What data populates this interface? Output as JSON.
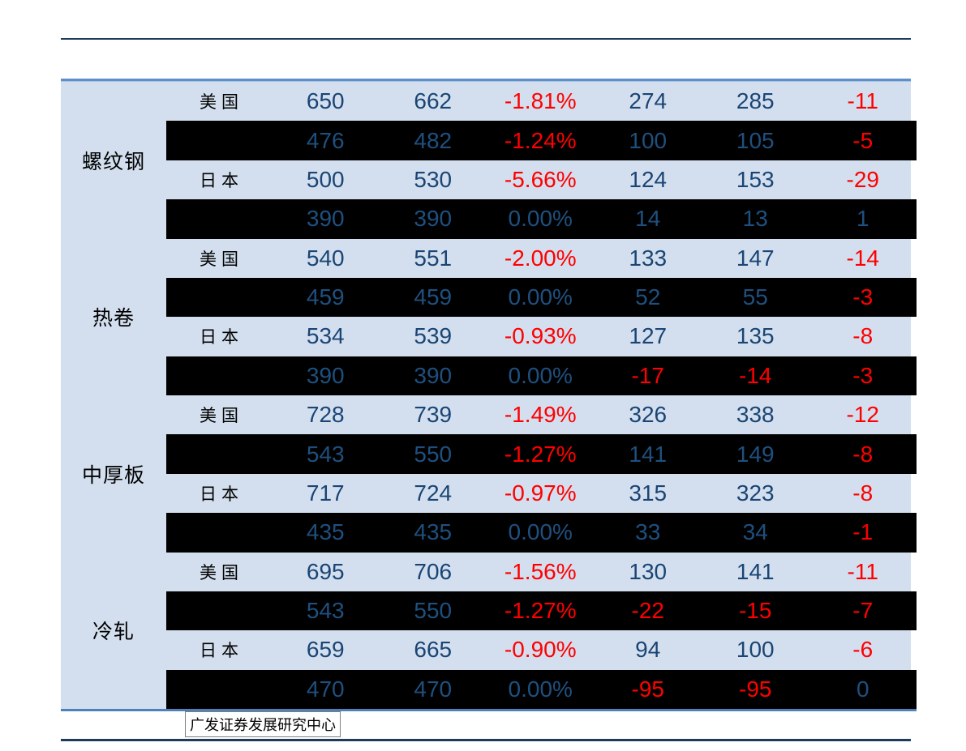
{
  "footer": {
    "credit": "广发证券发展研究中心"
  },
  "colors": {
    "accent_navy_rule": "#1e3a5f",
    "table_top_border": "#5e8fc9",
    "table_bottom_border": "#4d80bd",
    "row_light_bg": "#d3dfee",
    "row_dark_bg": "#000000",
    "number_blue": "#1a4574",
    "number_blue_on_dark": "#1e507f",
    "number_red": "#ff0000",
    "label_black": "#000000"
  },
  "table": {
    "groups": [
      {
        "label": "螺纹钢",
        "rows": [
          {
            "country": "美国",
            "shade": "light",
            "cells": [
              "650",
              "662",
              "-1.81%",
              "274",
              "285",
              "-11"
            ]
          },
          {
            "country": "",
            "shade": "dark",
            "cells": [
              "476",
              "482",
              "-1.24%",
              "100",
              "105",
              "-5"
            ]
          },
          {
            "country": "日本",
            "shade": "light",
            "cells": [
              "500",
              "530",
              "-5.66%",
              "124",
              "153",
              "-29"
            ]
          },
          {
            "country": "",
            "shade": "dark",
            "cells": [
              "390",
              "390",
              "0.00%",
              "14",
              "13",
              "1"
            ]
          }
        ]
      },
      {
        "label": "热卷",
        "rows": [
          {
            "country": "美国",
            "shade": "light",
            "cells": [
              "540",
              "551",
              "-2.00%",
              "133",
              "147",
              "-14"
            ]
          },
          {
            "country": "",
            "shade": "dark",
            "cells": [
              "459",
              "459",
              "0.00%",
              "52",
              "55",
              "-3"
            ]
          },
          {
            "country": "日本",
            "shade": "light",
            "cells": [
              "534",
              "539",
              "-0.93%",
              "127",
              "135",
              "-8"
            ]
          },
          {
            "country": "",
            "shade": "dark",
            "cells": [
              "390",
              "390",
              "0.00%",
              "-17",
              "-14",
              "-3"
            ]
          }
        ]
      },
      {
        "label": "中厚板",
        "rows": [
          {
            "country": "美国",
            "shade": "light",
            "cells": [
              "728",
              "739",
              "-1.49%",
              "326",
              "338",
              "-12"
            ]
          },
          {
            "country": "",
            "shade": "dark",
            "cells": [
              "543",
              "550",
              "-1.27%",
              "141",
              "149",
              "-8"
            ]
          },
          {
            "country": "日本",
            "shade": "light",
            "cells": [
              "717",
              "724",
              "-0.97%",
              "315",
              "323",
              "-8"
            ]
          },
          {
            "country": "",
            "shade": "dark",
            "cells": [
              "435",
              "435",
              "0.00%",
              "33",
              "34",
              "-1"
            ]
          }
        ]
      },
      {
        "label": "冷轧",
        "rows": [
          {
            "country": "美国",
            "shade": "light",
            "cells": [
              "695",
              "706",
              "-1.56%",
              "130",
              "141",
              "-11"
            ]
          },
          {
            "country": "",
            "shade": "dark",
            "cells": [
              "543",
              "550",
              "-1.27%",
              "-22",
              "-15",
              "-7"
            ]
          },
          {
            "country": "日本",
            "shade": "light",
            "cells": [
              "659",
              "665",
              "-0.90%",
              "94",
              "100",
              "-6"
            ]
          },
          {
            "country": "",
            "shade": "dark",
            "cells": [
              "470",
              "470",
              "0.00%",
              "-95",
              "-95",
              "0"
            ]
          }
        ]
      }
    ]
  }
}
